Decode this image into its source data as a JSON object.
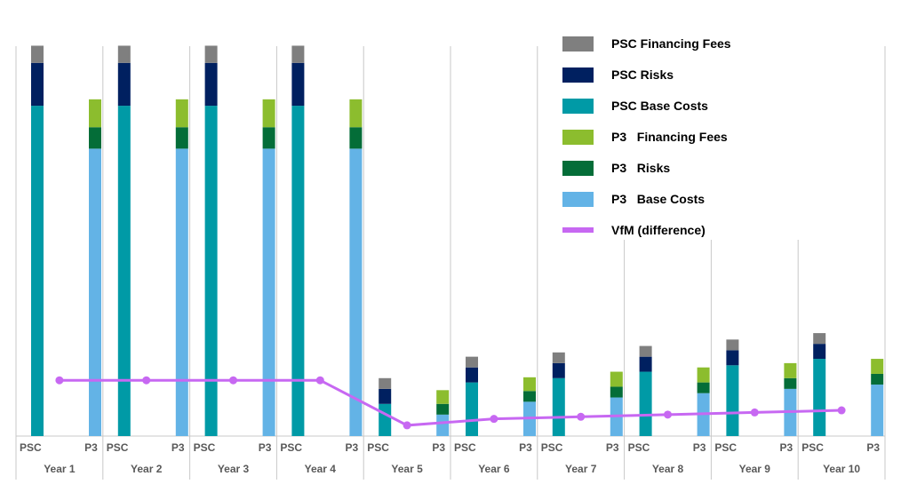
{
  "chart_data": {
    "type": "bar",
    "subtype": "stacked-grouped-with-line",
    "title": "",
    "xlabel": "",
    "ylabel": "",
    "ylim": [
      0,
      100
    ],
    "categories": [
      "Year 1",
      "Year 2",
      "Year 3",
      "Year 4",
      "Year 5",
      "Year 6",
      "Year 7",
      "Year 8",
      "Year 9",
      "Year 10"
    ],
    "group_labels": [
      "PSC",
      "P3"
    ],
    "series": [
      {
        "name": "PSC Financing Fees",
        "group": "PSC",
        "color": "#7f7f7f",
        "values": [
          4,
          4,
          4,
          4,
          2.5,
          2.5,
          2.5,
          2.5,
          2.5,
          2.5
        ]
      },
      {
        "name": "PSC Risks",
        "group": "PSC",
        "color": "#002060",
        "values": [
          10,
          10,
          10,
          10,
          3.5,
          3.5,
          3.5,
          3.5,
          3.5,
          3.5
        ]
      },
      {
        "name": "PSC Base Costs",
        "group": "PSC",
        "color": "#009aa6",
        "values": [
          77,
          77,
          77,
          77,
          7.5,
          12.5,
          13.5,
          15,
          16.5,
          18
        ]
      },
      {
        "name": "P3   Financing Fees",
        "group": "P3",
        "color": "#8cbd2e",
        "values": [
          6.5,
          6.5,
          6.5,
          6.5,
          3.2,
          3.2,
          3.5,
          3.5,
          3.5,
          3.5
        ]
      },
      {
        "name": "P3   Risks",
        "group": "P3",
        "color": "#046d38",
        "values": [
          5,
          5,
          5,
          5,
          2.5,
          2.5,
          2.5,
          2.5,
          2.5,
          2.5
        ]
      },
      {
        "name": "P3   Base Costs",
        "group": "P3",
        "color": "#63b3e6",
        "values": [
          67,
          67,
          67,
          67,
          5,
          8,
          9,
          10,
          11,
          12
        ]
      }
    ],
    "line_series": {
      "name": "VfM (difference)",
      "color": "#c768f2",
      "values": [
        13,
        13,
        13,
        13,
        2.5,
        4,
        4.5,
        5,
        5.5,
        6
      ]
    },
    "legend_position": "top-right"
  }
}
